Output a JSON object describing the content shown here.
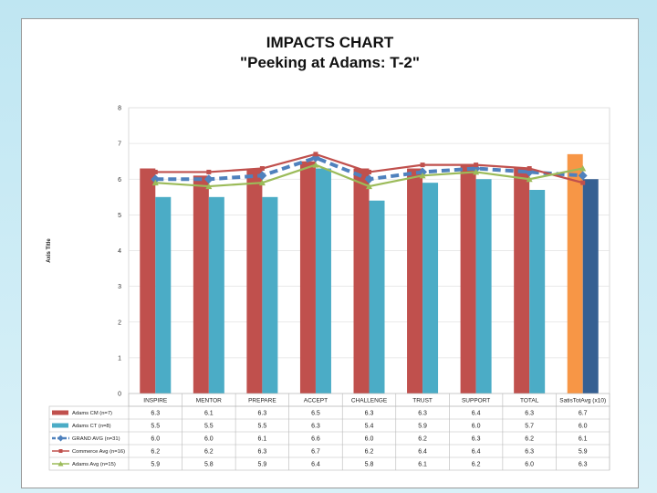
{
  "chart_data": {
    "type": "bar",
    "title": "IMPACTS CHART",
    "subtitle": "\"Peeking at Adams: T-2\"",
    "ylabel": "Axis Title",
    "xlabel": "",
    "ylim": [
      0,
      8
    ],
    "yticks": [
      "0",
      "1",
      "2",
      "3",
      "4",
      "5",
      "6",
      "7",
      "8"
    ],
    "categories": [
      "INSPIRE",
      "MENTOR",
      "PREPARE",
      "ACCEPT",
      "CHALLENGE",
      "TRUST",
      "SUPPORT",
      "TOTAL",
      "SatisTotAvg (x10)"
    ],
    "series": [
      {
        "name": "Adams CM (n=7)",
        "kind": "bar",
        "color": "#c0504d",
        "values": [
          6.3,
          6.1,
          6.3,
          6.5,
          6.3,
          6.3,
          6.4,
          6.3,
          6.7
        ],
        "labels": [
          "6.3",
          "6.1",
          "6.3",
          "6.5",
          "6.3",
          "6.3",
          "6.4",
          "6.3",
          "6.7"
        ]
      },
      {
        "name": "Adams CT (n=8)",
        "kind": "bar",
        "color": "#4bacc6",
        "values": [
          5.5,
          5.5,
          5.5,
          6.3,
          5.4,
          5.9,
          6.0,
          5.7,
          6.0
        ],
        "labels": [
          "5.5",
          "5.5",
          "5.5",
          "6.3",
          "5.4",
          "5.9",
          "6.0",
          "5.7",
          "6.0"
        ]
      },
      {
        "name": "GRAND AVG (n=31)",
        "kind": "line",
        "style": "dashed",
        "color": "#4f81bd",
        "values": [
          6.0,
          6.0,
          6.1,
          6.6,
          6.0,
          6.2,
          6.3,
          6.2,
          6.1
        ],
        "labels": [
          "6.0",
          "6.0",
          "6.1",
          "6.6",
          "6.0",
          "6.2",
          "6.3",
          "6.2",
          "6.1"
        ]
      },
      {
        "name": "Commerce  Avg (n=16)",
        "kind": "line",
        "color": "#c0504d",
        "values": [
          6.2,
          6.2,
          6.3,
          6.7,
          6.2,
          6.4,
          6.4,
          6.3,
          5.9
        ],
        "labels": [
          "6.2",
          "6.2",
          "6.3",
          "6.7",
          "6.2",
          "6.4",
          "6.4",
          "6.3",
          "5.9"
        ]
      },
      {
        "name": "Adams Avg (n=15)",
        "kind": "line",
        "color": "#9bbb59",
        "values": [
          5.9,
          5.8,
          5.9,
          6.4,
          5.8,
          6.1,
          6.2,
          6.0,
          6.3
        ],
        "labels": [
          "5.9",
          "5.8",
          "5.9",
          "6.4",
          "5.8",
          "6.1",
          "6.2",
          "6.0",
          "6.3"
        ]
      }
    ],
    "last_category_bar_colors": [
      "#f79646",
      "#366092"
    ],
    "legend": "data-table-below"
  }
}
